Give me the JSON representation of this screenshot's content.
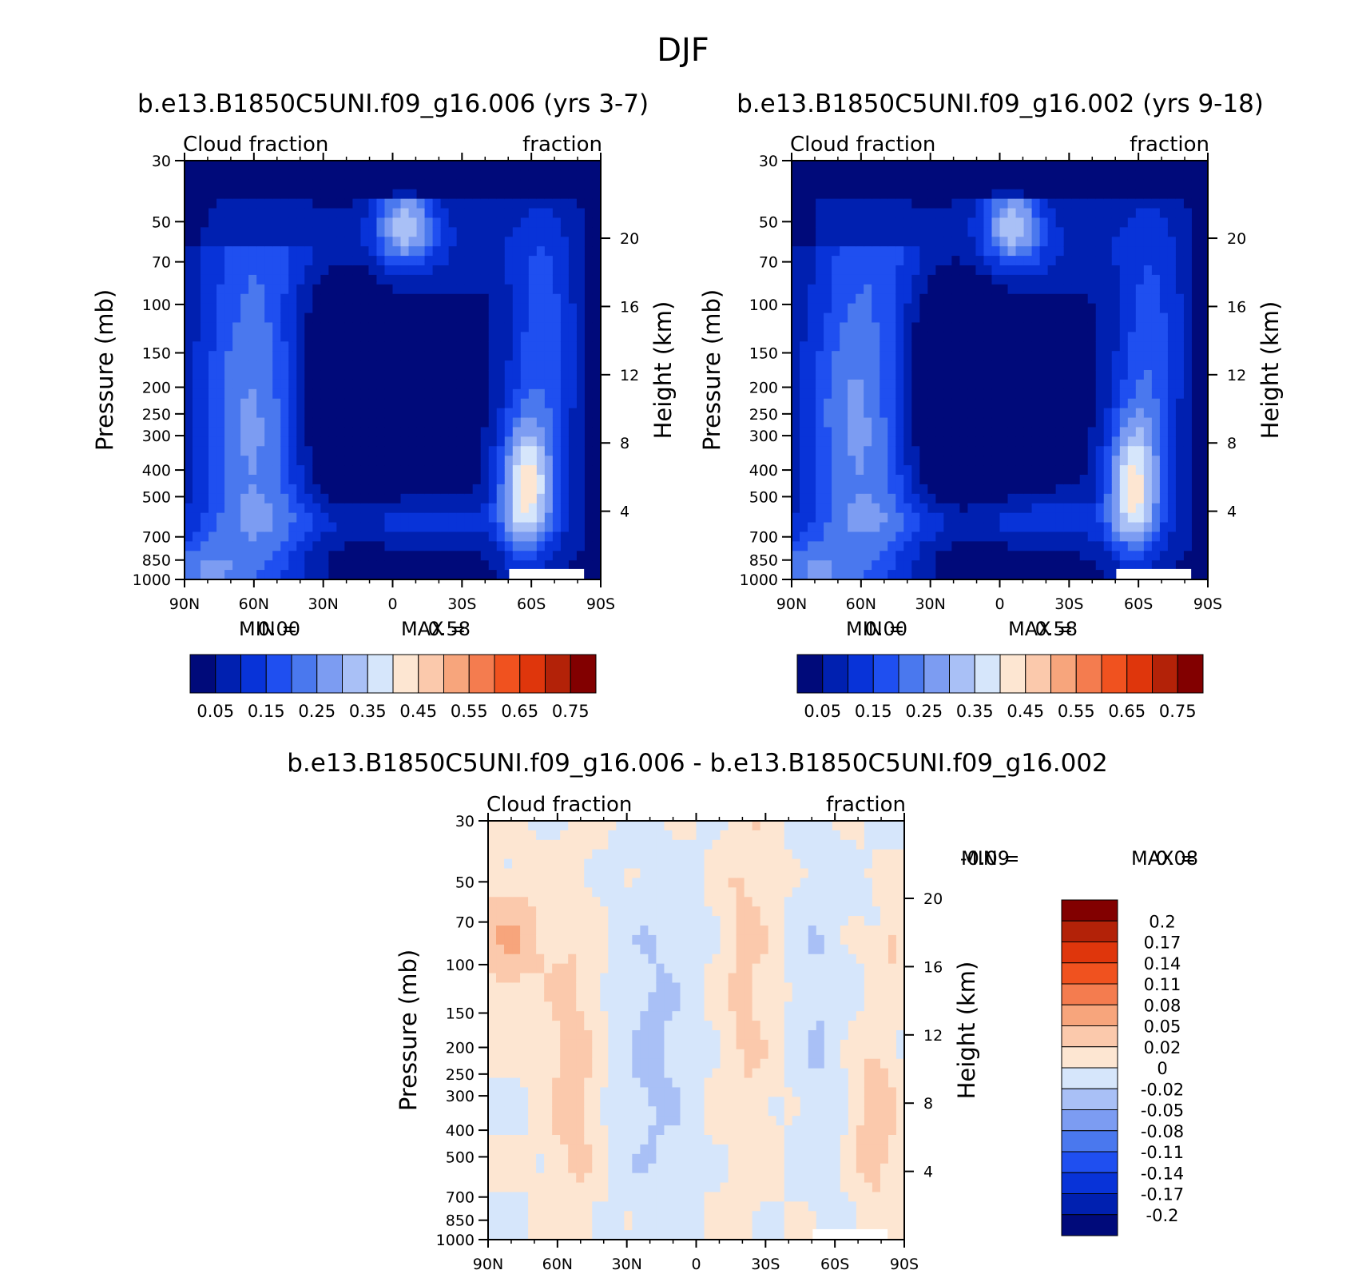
{
  "figure": {
    "title": "DJF"
  },
  "colors": {
    "scale_0_75": [
      "#000a7a",
      "#0020b0",
      "#0833d8",
      "#1f4ff0",
      "#4a78ee",
      "#7c9cf2",
      "#a9c0f6",
      "#d6e6fb",
      "#fde6d2",
      "#fbc9ac",
      "#f7a57c",
      "#f47c4f",
      "#f0521f",
      "#df360c",
      "#b32208",
      "#820000"
    ],
    "scale_diff": [
      "#000a7a",
      "#0020b0",
      "#0833d8",
      "#1f4ff0",
      "#4a78ee",
      "#7c9cf2",
      "#a9c0f6",
      "#d6e6fb",
      "#fde6d2",
      "#fbc9ac",
      "#f7a57c",
      "#f47c4f",
      "#f0521f",
      "#df360c",
      "#b32208",
      "#820000"
    ]
  },
  "chart_data": [
    {
      "type": "heatmap",
      "title": "b.e13.B1850C5UNI.f09_g16.006 (yrs 3-7)",
      "left_label": "Cloud fraction",
      "right_label": "fraction",
      "xlabel": "",
      "ylabel": "Pressure (mb)",
      "y2label": "Height (km)",
      "xticks": [
        "90N",
        "60N",
        "30N",
        "0",
        "30S",
        "60S",
        "90S"
      ],
      "yticks": [
        "30",
        "50",
        "70",
        "100",
        "150",
        "200",
        "250",
        "300",
        "400",
        "500",
        "700",
        "850",
        "1000"
      ],
      "y2ticks": [
        "20",
        "16",
        "12",
        "8",
        "4"
      ],
      "ylim": [
        1000,
        30
      ],
      "min_label": "MIN =",
      "min_value": "0.00",
      "max_label": "MAX =",
      "max_value": "0.58",
      "min": 0.0,
      "max": 0.58,
      "colorbar_labels": [
        "0.05",
        "0.15",
        "0.25",
        "0.35",
        "0.45",
        "0.55",
        "0.65",
        "0.75"
      ]
    },
    {
      "type": "heatmap",
      "title": "b.e13.B1850C5UNI.f09_g16.002 (yrs 9-18)",
      "left_label": "Cloud fraction",
      "right_label": "fraction",
      "xlabel": "",
      "ylabel": "Pressure (mb)",
      "y2label": "Height (km)",
      "xticks": [
        "90N",
        "60N",
        "30N",
        "0",
        "30S",
        "60S",
        "90S"
      ],
      "yticks": [
        "30",
        "50",
        "70",
        "100",
        "150",
        "200",
        "250",
        "300",
        "400",
        "500",
        "700",
        "850",
        "1000"
      ],
      "y2ticks": [
        "20",
        "16",
        "12",
        "8",
        "4"
      ],
      "ylim": [
        1000,
        30
      ],
      "min_label": "MIN =",
      "min_value": "0.00",
      "max_label": "MAX =",
      "max_value": "0.58",
      "min": 0.0,
      "max": 0.58,
      "colorbar_labels": [
        "0.05",
        "0.15",
        "0.25",
        "0.35",
        "0.45",
        "0.55",
        "0.65",
        "0.75"
      ]
    },
    {
      "type": "heatmap",
      "title": "b.e13.B1850C5UNI.f09_g16.006 - b.e13.B1850C5UNI.f09_g16.002",
      "left_label": "Cloud fraction",
      "right_label": "fraction",
      "xlabel": "",
      "ylabel": "Pressure (mb)",
      "y2label": "Height (km)",
      "xticks": [
        "90N",
        "60N",
        "30N",
        "0",
        "30S",
        "60S",
        "90S"
      ],
      "yticks": [
        "30",
        "50",
        "70",
        "100",
        "150",
        "200",
        "250",
        "300",
        "400",
        "500",
        "700",
        "850",
        "1000"
      ],
      "y2ticks": [
        "20",
        "16",
        "12",
        "8",
        "4"
      ],
      "ylim": [
        1000,
        30
      ],
      "min_label": "MIN =",
      "min_value": "-0.09",
      "max_label": "MAX =",
      "max_value": "0.08",
      "min": -0.09,
      "max": 0.08,
      "colorbar_labels": [
        "0.2",
        "0.17",
        "0.14",
        "0.11",
        "0.08",
        "0.05",
        "0.02",
        "0",
        "-0.02",
        "-0.05",
        "-0.08",
        "-0.11",
        "-0.14",
        "-0.17",
        "-0.2"
      ]
    }
  ]
}
